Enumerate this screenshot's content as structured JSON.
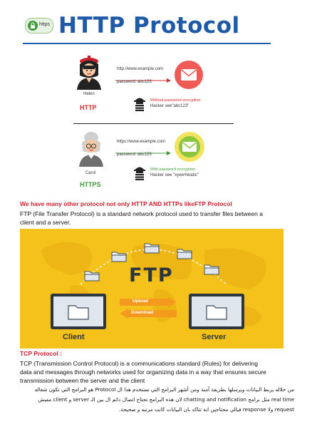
{
  "header": {
    "title": "HTTP Protocol",
    "logo_text": "https"
  },
  "diagram": {
    "top": {
      "user": "Helen",
      "protocol": "HTTP",
      "url": "http://www.example.com",
      "password": "password: abc123",
      "warning": "Without password encryption",
      "hacker": "Hacker see\"abc123\""
    },
    "bottom": {
      "user": "Carol",
      "protocol": "HTTPS",
      "url": "https://www.example.com",
      "password": "password: abc123",
      "warning": "With password encryption",
      "hacker": "Hacker see \"xywe%kabc\""
    }
  },
  "ftp_section": {
    "heading": "We have many other protocol not only HTTP AND HTTPs likeFTP Protocol",
    "line1": "FTP (File Transfer Protocol) is a standard network protocol used to transfer files between a",
    "line2": "client and a server."
  },
  "ftp_image": {
    "label": "FTP",
    "upload": "Upload",
    "download": "Download",
    "client": "Client",
    "server": "Server"
  },
  "tcp_section": {
    "heading": "TCP Protocol :",
    "line1": "TCP (Transmission Control Protocol) is a communications standard (Rules) for delivering",
    "line2": "data and messages through networks used for organizing data in a way that ensures secure",
    "line3": "transmission between the server and the client",
    "ar1": "من خلاله يربط البيانات ويرسلها بطريقة آمنة ومن أشهر البرامج التي تستخدم هذا ال Protocol هو البرامج التي تكون شغاله",
    "ar2": "real time مثل برامج chatting and notification لان هذه البرامج تحتاج اتصال دائم ال بين الـ server و client مفيش",
    "ar3": "request ولا response فيالي محتاجين انه تتاكد بان البيانات كانت مرتبه و صحيحة."
  },
  "colors": {
    "title_blue": "#1f5aa8",
    "heading_red": "#c8202f",
    "ftp_yellow": "#f5c21b",
    "mail_red": "#ef5a55",
    "mail_green": "#8cc63e"
  }
}
